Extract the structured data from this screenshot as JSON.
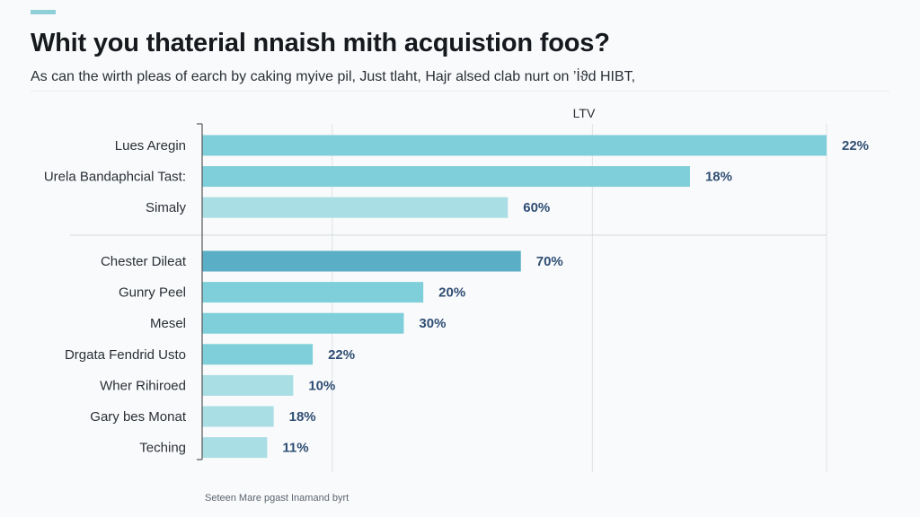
{
  "title": "Whit you thaterial nnaish mith acquistion foos?",
  "subtitle": "As can the wirth pleas of earch by caking myive pil, Just tlaht, Hajr alsed clab nurt on ’İϑd HIBT,",
  "source": "Seteen Mare pgast Inamand byrt",
  "colors": {
    "bar_primary": "#7ecfd9",
    "bar_light": "#a8dee4",
    "bar_dark": "#5aaec6",
    "value_text": "#2f4e74",
    "axis": "#555555",
    "grid": "#e0e3e6",
    "accent": "#8fd0d8"
  },
  "chart_data": {
    "type": "bar",
    "orientation": "horizontal",
    "axis_title": "LTV",
    "title": "Whit you thaterial nnaish mith acquistion foos?",
    "groups": [
      {
        "name": "group-1",
        "categories": [
          "Lues Aregin",
          "Urela Bandaphcial Tast:",
          "Simaly"
        ],
        "values": [
          96,
          75,
          47
        ],
        "labels": [
          "22%",
          "18%",
          "60%"
        ],
        "shades": [
          "primary",
          "primary",
          "light"
        ]
      },
      {
        "name": "group-2",
        "categories": [
          "Chester Dileat",
          "Gunry Peel",
          "Mesel",
          "Drgata Fendrid Usto",
          "Wher Rihiroed",
          "Gary bes Monat",
          "Teching"
        ],
        "values": [
          49,
          34,
          31,
          17,
          14,
          11,
          10
        ],
        "labels": [
          "70%",
          "20%",
          "30%",
          "22%",
          "10%",
          "18%",
          "11%"
        ],
        "shades": [
          "dark",
          "primary",
          "primary",
          "primary",
          "light",
          "light",
          "light"
        ]
      }
    ],
    "xlim": [
      0,
      96
    ],
    "gridlines": [
      20,
      60,
      96
    ],
    "grid": true,
    "legend": "none"
  }
}
